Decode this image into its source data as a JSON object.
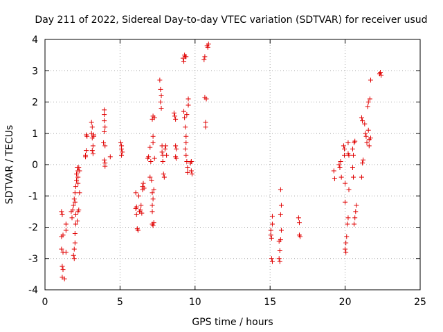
{
  "chart_data": {
    "type": "scatter",
    "title": "Day 211 of 2022, Sidereal Day-to-day VTEC variation (SDTVAR) for receiver usud",
    "xlabel": "GPS time / hours",
    "ylabel": "SDTVAR / TECUs",
    "xlim": [
      0,
      25
    ],
    "ylim": [
      -4,
      4
    ],
    "xticks": [
      0,
      5,
      10,
      15,
      20,
      25
    ],
    "yticks": [
      -4,
      -3,
      -2,
      -1,
      0,
      1,
      2,
      3,
      4
    ],
    "xtick_labels": [
      "0",
      "5",
      "10",
      "15",
      "20",
      "25"
    ],
    "ytick_labels": [
      "-4",
      "-3",
      "-2",
      "-1",
      "0",
      "1",
      "2",
      "3",
      "4"
    ],
    "grid": true,
    "marker": "+",
    "series": [
      {
        "name": "SDTVAR",
        "color": "#e00000",
        "points": [
          [
            1.1,
            -1.5
          ],
          [
            1.15,
            -1.6
          ],
          [
            1.1,
            -2.3
          ],
          [
            1.2,
            -2.25
          ],
          [
            1.1,
            -2.7
          ],
          [
            1.2,
            -2.8
          ],
          [
            1.15,
            -3.25
          ],
          [
            1.2,
            -3.35
          ],
          [
            1.15,
            -3.6
          ],
          [
            1.3,
            -3.65
          ],
          [
            1.4,
            -1.9
          ],
          [
            1.4,
            -2.1
          ],
          [
            1.4,
            -2.8
          ],
          [
            1.75,
            -1.5
          ],
          [
            1.8,
            -1.7
          ],
          [
            1.85,
            -1.45
          ],
          [
            1.9,
            -1.3
          ],
          [
            1.95,
            -1.1
          ],
          [
            1.9,
            -2.9
          ],
          [
            1.95,
            -3.0
          ],
          [
            1.95,
            -2.7
          ],
          [
            2.0,
            -2.5
          ],
          [
            2.0,
            -2.2
          ],
          [
            2.05,
            -1.9
          ],
          [
            2.05,
            -1.6
          ],
          [
            2.0,
            -1.2
          ],
          [
            2.0,
            -0.9
          ],
          [
            2.05,
            -0.7
          ],
          [
            2.1,
            -0.5
          ],
          [
            2.1,
            -0.3
          ],
          [
            2.15,
            -0.1
          ],
          [
            2.2,
            -0.2
          ],
          [
            2.2,
            -0.4
          ],
          [
            2.2,
            -0.6
          ],
          [
            2.15,
            -1.8
          ],
          [
            2.2,
            -1.5
          ],
          [
            2.25,
            -1.45
          ],
          [
            2.3,
            -0.9
          ],
          [
            2.3,
            -0.2
          ],
          [
            2.25,
            -0.1
          ],
          [
            2.7,
            0.3
          ],
          [
            2.7,
            0.25
          ],
          [
            2.75,
            0.95
          ],
          [
            2.8,
            0.9
          ],
          [
            2.75,
            0.45
          ],
          [
            3.1,
            1.35
          ],
          [
            3.15,
            1.2
          ],
          [
            3.1,
            1.0
          ],
          [
            3.15,
            0.85
          ],
          [
            3.2,
            0.6
          ],
          [
            3.15,
            0.45
          ],
          [
            3.2,
            0.35
          ],
          [
            3.25,
            0.9
          ],
          [
            3.25,
            0.95
          ],
          [
            3.95,
            1.75
          ],
          [
            3.95,
            1.6
          ],
          [
            3.95,
            1.4
          ],
          [
            4.0,
            1.2
          ],
          [
            3.95,
            1.05
          ],
          [
            3.9,
            0.7
          ],
          [
            4.0,
            0.6
          ],
          [
            3.95,
            0.15
          ],
          [
            4.0,
            0.05
          ],
          [
            4.0,
            -0.05
          ],
          [
            4.35,
            0.25
          ],
          [
            5.05,
            0.7
          ],
          [
            5.1,
            0.6
          ],
          [
            5.1,
            0.5
          ],
          [
            5.15,
            0.4
          ],
          [
            5.1,
            0.3
          ],
          [
            6.05,
            -0.9
          ],
          [
            6.05,
            -1.4
          ],
          [
            6.1,
            -1.6
          ],
          [
            6.1,
            -1.35
          ],
          [
            6.15,
            -2.05
          ],
          [
            6.2,
            -2.1
          ],
          [
            6.25,
            -1.0
          ],
          [
            6.3,
            -1.5
          ],
          [
            6.35,
            -1.45
          ],
          [
            6.4,
            -1.3
          ],
          [
            6.45,
            -1.55
          ],
          [
            6.5,
            -0.7
          ],
          [
            6.55,
            -0.6
          ],
          [
            6.5,
            -0.8
          ],
          [
            6.6,
            -0.75
          ],
          [
            6.85,
            0.2
          ],
          [
            6.9,
            0.25
          ],
          [
            7.0,
            0.55
          ],
          [
            7.05,
            0.1
          ],
          [
            7.0,
            -0.4
          ],
          [
            7.1,
            -0.5
          ],
          [
            7.15,
            -0.9
          ],
          [
            7.2,
            -1.1
          ],
          [
            7.15,
            -1.3
          ],
          [
            7.15,
            -1.5
          ],
          [
            7.15,
            -1.9
          ],
          [
            7.2,
            -1.95
          ],
          [
            7.25,
            -1.85
          ],
          [
            7.25,
            -0.8
          ],
          [
            7.3,
            0.2
          ],
          [
            7.3,
            1.5
          ],
          [
            7.2,
            1.55
          ],
          [
            7.15,
            1.45
          ],
          [
            7.2,
            0.9
          ],
          [
            7.2,
            0.7
          ],
          [
            7.65,
            2.7
          ],
          [
            7.7,
            2.4
          ],
          [
            7.75,
            2.2
          ],
          [
            7.7,
            2.0
          ],
          [
            7.75,
            1.8
          ],
          [
            7.8,
            0.6
          ],
          [
            7.8,
            0.4
          ],
          [
            7.85,
            0.3
          ],
          [
            7.85,
            0.1
          ],
          [
            7.9,
            -0.3
          ],
          [
            7.95,
            -0.4
          ],
          [
            8.0,
            0.5
          ],
          [
            8.05,
            0.6
          ],
          [
            8.1,
            0.3
          ],
          [
            8.6,
            1.65
          ],
          [
            8.65,
            1.55
          ],
          [
            8.7,
            1.45
          ],
          [
            8.7,
            0.6
          ],
          [
            8.75,
            0.5
          ],
          [
            8.7,
            0.25
          ],
          [
            8.75,
            0.2
          ],
          [
            9.2,
            3.4
          ],
          [
            9.25,
            3.3
          ],
          [
            9.3,
            3.5
          ],
          [
            9.35,
            3.45
          ],
          [
            9.4,
            3.45
          ],
          [
            9.25,
            1.7
          ],
          [
            9.3,
            1.5
          ],
          [
            9.35,
            1.2
          ],
          [
            9.4,
            0.9
          ],
          [
            9.4,
            0.7
          ],
          [
            9.35,
            0.5
          ],
          [
            9.4,
            0.3
          ],
          [
            9.45,
            0.1
          ],
          [
            9.5,
            -0.1
          ],
          [
            9.5,
            -0.25
          ],
          [
            9.55,
            1.9
          ],
          [
            9.55,
            2.1
          ],
          [
            9.45,
            1.6
          ],
          [
            9.7,
            0.05
          ],
          [
            9.75,
            -0.2
          ],
          [
            9.8,
            -0.3
          ],
          [
            9.75,
            0.1
          ],
          [
            10.6,
            3.35
          ],
          [
            10.65,
            3.45
          ],
          [
            10.7,
            1.35
          ],
          [
            10.7,
            1.2
          ],
          [
            10.65,
            2.15
          ],
          [
            10.75,
            2.1
          ],
          [
            10.8,
            3.8
          ],
          [
            10.85,
            3.75
          ],
          [
            10.9,
            3.85
          ],
          [
            15.05,
            -2.1
          ],
          [
            15.05,
            -2.25
          ],
          [
            15.1,
            -2.35
          ],
          [
            15.15,
            -1.9
          ],
          [
            15.15,
            -1.65
          ],
          [
            15.1,
            -3.0
          ],
          [
            15.15,
            -3.1
          ],
          [
            15.6,
            -2.45
          ],
          [
            15.65,
            -2.75
          ],
          [
            15.6,
            -3.0
          ],
          [
            15.65,
            -3.1
          ],
          [
            15.7,
            -1.6
          ],
          [
            15.75,
            -1.3
          ],
          [
            15.7,
            -0.8
          ],
          [
            15.75,
            -2.1
          ],
          [
            15.7,
            -2.4
          ],
          [
            16.9,
            -1.7
          ],
          [
            16.95,
            -1.85
          ],
          [
            16.95,
            -2.25
          ],
          [
            17.0,
            -2.3
          ],
          [
            19.25,
            -0.2
          ],
          [
            19.3,
            -0.45
          ],
          [
            19.6,
            0.0
          ],
          [
            19.65,
            -0.1
          ],
          [
            19.7,
            0.1
          ],
          [
            19.75,
            -0.4
          ],
          [
            19.9,
            0.6
          ],
          [
            19.95,
            0.5
          ],
          [
            19.95,
            0.3
          ],
          [
            20.0,
            -0.6
          ],
          [
            20.0,
            -1.2
          ],
          [
            20.05,
            -2.5
          ],
          [
            20.0,
            -2.7
          ],
          [
            20.05,
            -2.8
          ],
          [
            20.1,
            -2.3
          ],
          [
            20.15,
            -1.9
          ],
          [
            20.2,
            -1.7
          ],
          [
            20.2,
            0.35
          ],
          [
            20.25,
            0.3
          ],
          [
            20.2,
            0.7
          ],
          [
            20.25,
            -0.8
          ],
          [
            20.5,
            0.5
          ],
          [
            20.55,
            0.3
          ],
          [
            20.5,
            -0.1
          ],
          [
            20.55,
            -0.4
          ],
          [
            20.6,
            0.7
          ],
          [
            20.65,
            0.75
          ],
          [
            20.6,
            -1.9
          ],
          [
            20.65,
            -1.7
          ],
          [
            20.7,
            -1.5
          ],
          [
            20.75,
            -1.3
          ],
          [
            21.1,
            1.5
          ],
          [
            21.15,
            1.4
          ],
          [
            21.15,
            0.05
          ],
          [
            21.2,
            0.15
          ],
          [
            21.1,
            -0.4
          ],
          [
            21.3,
            1.3
          ],
          [
            21.35,
            1.0
          ],
          [
            21.4,
            0.9
          ],
          [
            21.45,
            0.7
          ],
          [
            21.5,
            1.85
          ],
          [
            21.55,
            2.0
          ],
          [
            21.55,
            1.1
          ],
          [
            21.6,
            0.8
          ],
          [
            21.6,
            0.6
          ],
          [
            21.65,
            2.1
          ],
          [
            21.7,
            0.85
          ],
          [
            21.7,
            2.7
          ],
          [
            22.3,
            2.9
          ],
          [
            22.35,
            2.95
          ],
          [
            22.4,
            2.85
          ]
        ]
      }
    ]
  }
}
